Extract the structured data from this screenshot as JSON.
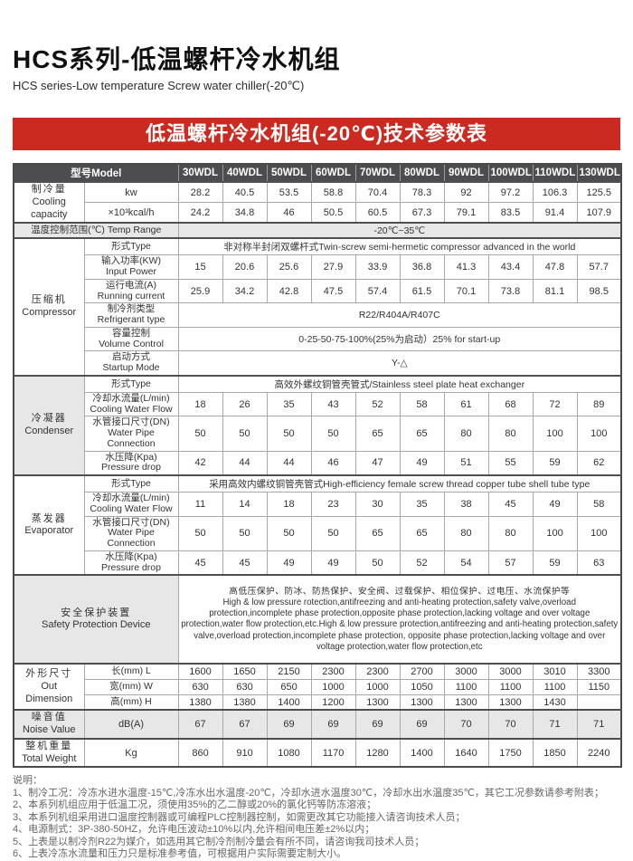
{
  "page": {
    "title": "HCS系列-低温螺杆冷水机组",
    "subtitle": "HCS series-Low temperature Screw water chiller(-20℃)",
    "banner": "低温螺杆冷水机组(-20℃)技术参数表"
  },
  "table": {
    "header": {
      "model_label": "型号Model",
      "models": [
        "30WDL",
        "40WDL",
        "50WDL",
        "60WDL",
        "70WDL",
        "80WDL",
        "90WDL",
        "100WDL",
        "110WDL",
        "130WDL"
      ]
    },
    "cooling": {
      "zh": "制冷量",
      "en": "Cooling capacity",
      "kw_label": "kw",
      "kw": [
        "28.2",
        "40.5",
        "53.5",
        "58.8",
        "70.4",
        "78.3",
        "92",
        "97.2",
        "106.3",
        "125.5"
      ],
      "kcal_label": "×10³kcal/h",
      "kcal": [
        "24.2",
        "34.8",
        "46",
        "50.5",
        "60.5",
        "67.3",
        "79.1",
        "83.5",
        "91.4",
        "107.9"
      ]
    },
    "temp_range": {
      "label": "温度控制范围(℃) Temp Range",
      "value": "-20℃~35℃"
    },
    "compressor": {
      "zh": "压缩机",
      "en": "Compressor",
      "type_label": "形式Type",
      "type_value": "非对称半封闭双螺杆式Twin-screw semi-hermetic compressor advanced in the world",
      "input_power": {
        "zh": "输入功率(KW)",
        "en": "Input Power",
        "values": [
          "15",
          "20.6",
          "25.6",
          "27.9",
          "33.9",
          "36.8",
          "41.3",
          "43.4",
          "47.8",
          "57.7"
        ]
      },
      "running_current": {
        "zh": "运行电流(A)",
        "en": "Running current",
        "values": [
          "25.9",
          "34.2",
          "42.8",
          "47.5",
          "57.4",
          "61.5",
          "70.1",
          "73.8",
          "81.1",
          "98.5"
        ]
      },
      "refrigerant": {
        "zh": "制冷剂类型",
        "en": "Refrigerant type",
        "value": "R22/R404A/R407C"
      },
      "volume": {
        "zh": "容量控制",
        "en": "Volume Control",
        "value": "0-25-50-75-100%(25%为启动）25% for start-up"
      },
      "startup": {
        "zh": "启动方式",
        "en": "Startup Mode",
        "value": "Y-△"
      }
    },
    "condenser": {
      "zh": "冷凝器",
      "en": "Condenser",
      "type_label": "形式Type",
      "type_value": "高效外螺纹铜管壳管式/Stainless steel plate heat exchanger",
      "flow": {
        "zh": "冷却水流量(L/min)",
        "en": "Cooling Water Flow",
        "values": [
          "18",
          "26",
          "35",
          "43",
          "52",
          "58",
          "61",
          "68",
          "72",
          "89"
        ]
      },
      "pipe": {
        "zh": "水管接口尺寸(DN)",
        "en": "Water Pipe Connection",
        "values": [
          "50",
          "50",
          "50",
          "50",
          "65",
          "65",
          "80",
          "80",
          "100",
          "100"
        ]
      },
      "drop": {
        "zh": "水压降(Kpa)",
        "en": "Pressure drop",
        "values": [
          "42",
          "44",
          "44",
          "46",
          "47",
          "49",
          "51",
          "55",
          "59",
          "62"
        ]
      }
    },
    "evaporator": {
      "zh": "蒸发器",
      "en": "Evaporator",
      "type_label": "形式Type",
      "type_value": "采用高效内螺纹铜管壳管式High-efficiency female screw thread copper tube shell tube type",
      "flow": {
        "zh": "冷却水流量(L/min)",
        "en": "Cooling Water Flow",
        "values": [
          "11",
          "14",
          "18",
          "23",
          "30",
          "35",
          "38",
          "45",
          "49",
          "58"
        ]
      },
      "pipe": {
        "zh": "水管接口尺寸(DN)",
        "en": "Water Pipe Connection",
        "values": [
          "50",
          "50",
          "50",
          "50",
          "65",
          "65",
          "80",
          "80",
          "100",
          "100"
        ]
      },
      "drop": {
        "zh": "水压降(Kpa)",
        "en": "Pressure drop",
        "values": [
          "45",
          "45",
          "49",
          "49",
          "50",
          "52",
          "54",
          "57",
          "59",
          "63"
        ]
      }
    },
    "safety": {
      "zh": "安全保护装置",
      "en": "Safety Protection Device",
      "zh_line": "高低压保护、防冰、防热保护、安全阀、过载保护、相位保护、过电压、水流保护等",
      "en_text": "High & low pressure rotection,antifreezing and anti-heating protection,safety valve,overload protection,incomplete phase protection,opposite phase protection,lacking voltage and over voltage protection,water flow protection,etc.High & low pressure protection,antifreezing and anti-heating protection,safety valve,overload protection,incomplete phase protection, opposite phase protection,lacking voltage and over voltage protection,water flow protection,etc"
    },
    "dimension": {
      "zh": "外形尺寸",
      "en": "Out Dimension",
      "rows": [
        {
          "label": "长(mm)  L",
          "values": [
            "1600",
            "1650",
            "2150",
            "2300",
            "2300",
            "2700",
            "3000",
            "3000",
            "3010",
            "3300"
          ]
        },
        {
          "label": "宽(mm)  W",
          "values": [
            "630",
            "630",
            "650",
            "1000",
            "1000",
            "1050",
            "1100",
            "1100",
            "1100",
            "1150"
          ]
        },
        {
          "label": "高(mm)  H",
          "values": [
            "1380",
            "1380",
            "1400",
            "1200",
            "1300",
            "1300",
            "1300",
            "1300",
            "1430",
            ""
          ]
        }
      ]
    },
    "noise": {
      "zh": "噪音值",
      "en": "Noise Value",
      "unit": "dB(A)",
      "values": [
        "67",
        "67",
        "69",
        "69",
        "69",
        "69",
        "70",
        "70",
        "71",
        "71"
      ]
    },
    "weight": {
      "zh": "整机重量",
      "en": "Total Weight",
      "unit": "Kg",
      "values": [
        "860",
        "910",
        "1080",
        "1170",
        "1280",
        "1400",
        "1640",
        "1750",
        "1850",
        "2240"
      ]
    }
  },
  "notes": {
    "heading": "说明：",
    "items": [
      "1、制冷工况：冷冻水进水温度-15℃,冷冻水出水温度-20℃，冷却水进水温度30℃，冷却水出水温度35℃，其它工况参数请参考附表；",
      "2、本系列机组应用于低温工况，须使用35%的乙二醇或20%的氯化钙等防冻溶液；",
      "3、本系列机组采用进口温度控制器或可编程PLC控制器控制，如需更改其它功能接入请咨询技术人员；",
      "4、电源制式：3P-380-50HZ，允许电压波动±10%以内,允许相间电压差±2%以内；",
      "5、上表是以制冷剂R22为媒介，如选用其它制冷剂制冷量会有所不同，请咨询我司技术人员；",
      "6、上表冷冻水流量和压力只是标准参考值，可根据用户实际需要定制大小。"
    ]
  }
}
